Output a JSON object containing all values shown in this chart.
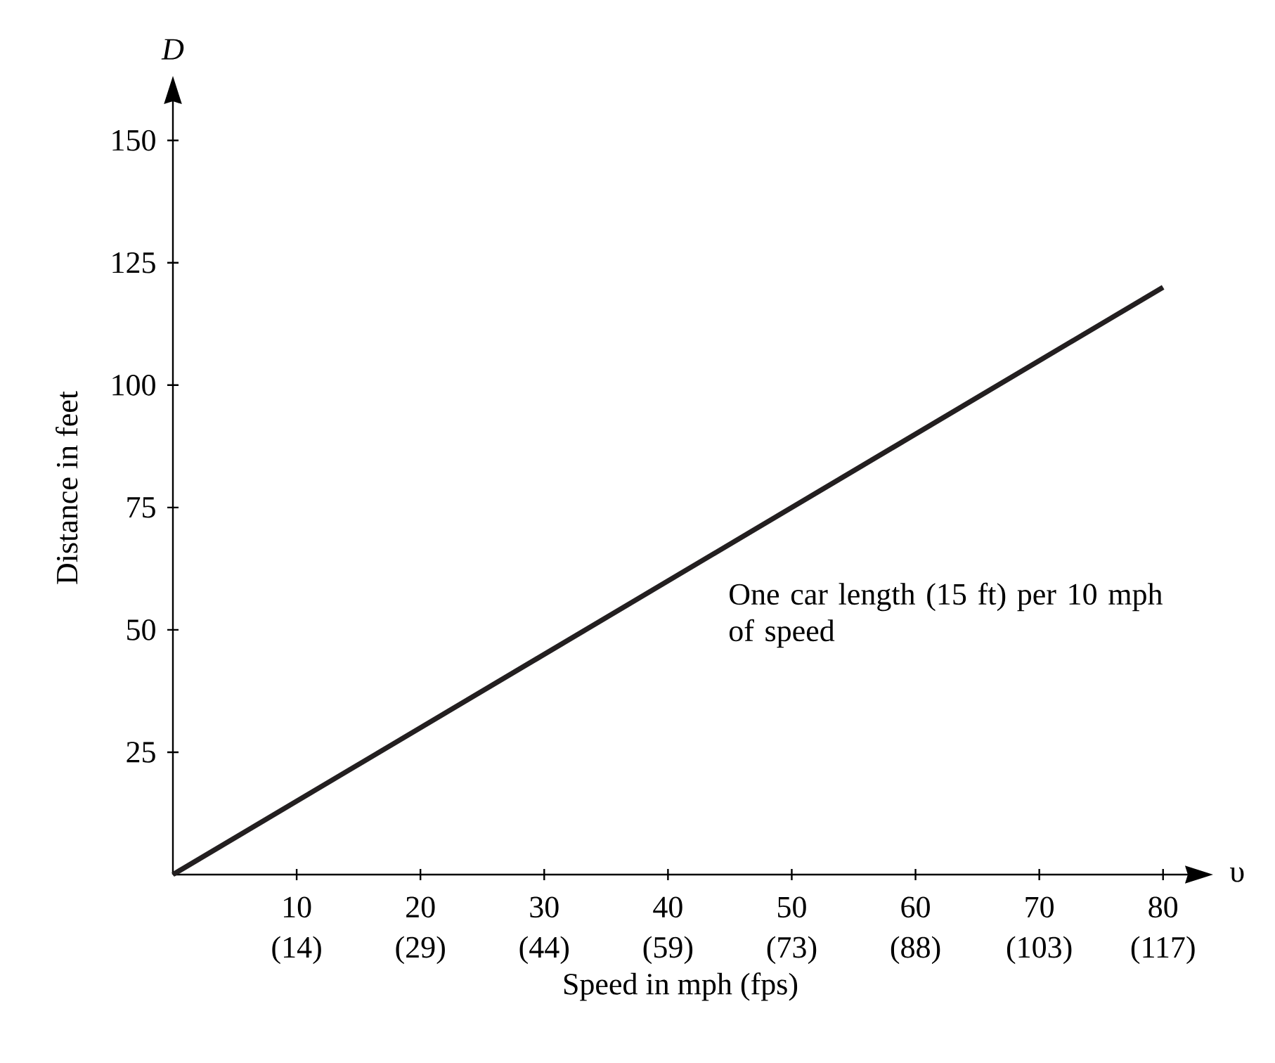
{
  "chart_data": {
    "type": "line",
    "xlabel": "Speed in mph (fps)",
    "ylabel": "Distance in feet",
    "x": [
      0,
      80
    ],
    "series": [
      {
        "color": "#231f20",
        "values": [
          0,
          120
        ]
      }
    ],
    "xlim": [
      0,
      82
    ],
    "ylim": [
      0,
      158
    ],
    "xticks": [
      10,
      20,
      30,
      40,
      50,
      60,
      70,
      80
    ],
    "yticks": [
      25,
      50,
      75,
      100,
      125,
      150
    ],
    "annotations": [
      "D",
      "υ",
      "One car length (15 ft) per 10 mph of speed",
      "(14)",
      "(29)",
      "(44)",
      "(59)",
      "(73)",
      "(88)",
      "(103)",
      "(117)"
    ],
    "grid": false,
    "marker": "none",
    "line_style": "solid"
  }
}
